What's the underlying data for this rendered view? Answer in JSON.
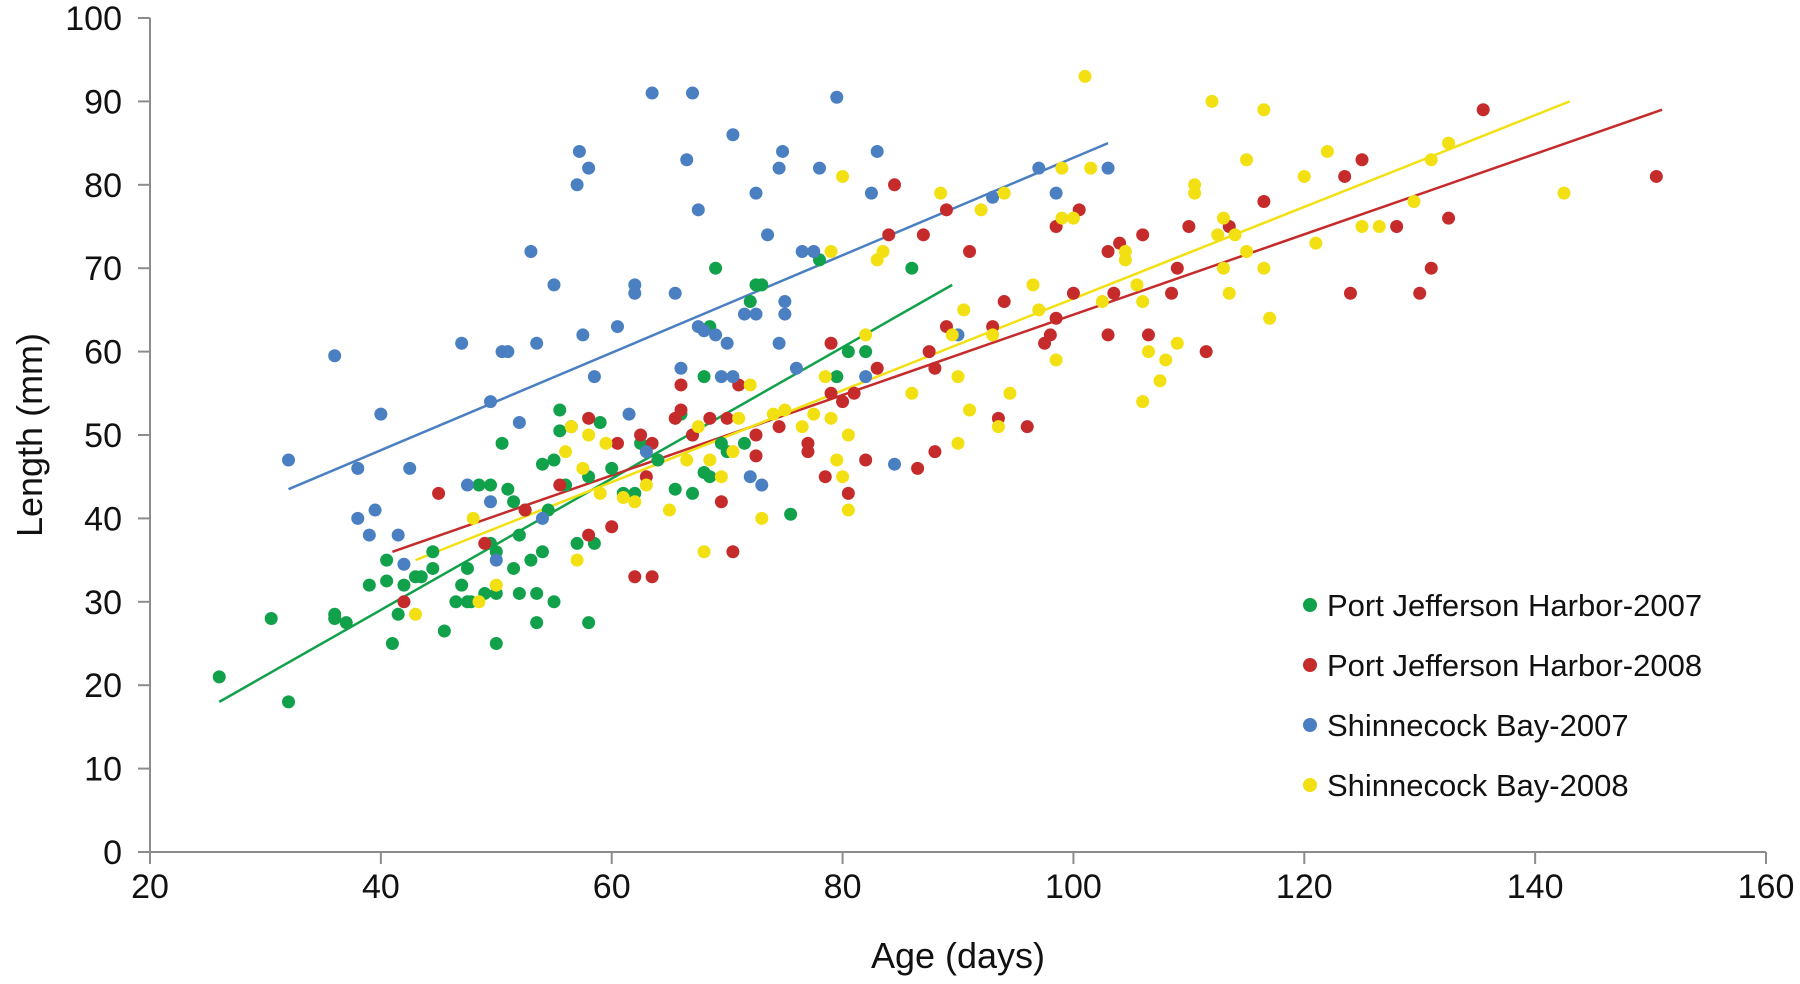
{
  "chart_data": {
    "type": "scatter",
    "title": "",
    "xlabel": "Age (days)",
    "ylabel": "Length (mm)",
    "xlim": [
      20,
      160
    ],
    "ylim": [
      0,
      100
    ],
    "xticks": [
      "20",
      "40",
      "60",
      "80",
      "100",
      "120",
      "140",
      "160"
    ],
    "yticks": [
      "0",
      "10",
      "20",
      "30",
      "40",
      "50",
      "60",
      "70",
      "80",
      "90",
      "100"
    ],
    "grid": false,
    "legend_position": "bottom-right",
    "series": [
      {
        "name": "Port Jefferson Harbor-2007",
        "color": "#12a14b",
        "trendline": [
          [
            26,
            18
          ],
          [
            89.5,
            68
          ]
        ],
        "points": [
          [
            26,
            21
          ],
          [
            30.5,
            28
          ],
          [
            32,
            18
          ],
          [
            36,
            28.5
          ],
          [
            36,
            28
          ],
          [
            37,
            27.5
          ],
          [
            39,
            32
          ],
          [
            40.5,
            35
          ],
          [
            40.5,
            32.5
          ],
          [
            41,
            25
          ],
          [
            41.5,
            28.5
          ],
          [
            42,
            32
          ],
          [
            43,
            33
          ],
          [
            43.5,
            33
          ],
          [
            44.5,
            34
          ],
          [
            44.5,
            36
          ],
          [
            45.5,
            26.5
          ],
          [
            46.5,
            30
          ],
          [
            47,
            32
          ],
          [
            47.5,
            30
          ],
          [
            47.5,
            34
          ],
          [
            47.8,
            30
          ],
          [
            48.5,
            44
          ],
          [
            49.5,
            44
          ],
          [
            49.5,
            37
          ],
          [
            49,
            31
          ],
          [
            50,
            31
          ],
          [
            50,
            25
          ],
          [
            50,
            36
          ],
          [
            50.5,
            49
          ],
          [
            51,
            43.5
          ],
          [
            51.5,
            42
          ],
          [
            51.5,
            34
          ],
          [
            52,
            31
          ],
          [
            52,
            38
          ],
          [
            52.5,
            41
          ],
          [
            53,
            35
          ],
          [
            53.5,
            31
          ],
          [
            53.5,
            27.5
          ],
          [
            54,
            36
          ],
          [
            54,
            46.5
          ],
          [
            54.5,
            41
          ],
          [
            55,
            47
          ],
          [
            55,
            30
          ],
          [
            55.5,
            50.5
          ],
          [
            55.5,
            53
          ],
          [
            56,
            44
          ],
          [
            56.5,
            51
          ],
          [
            57,
            37
          ],
          [
            58,
            45
          ],
          [
            58,
            27.5
          ],
          [
            58.5,
            37
          ],
          [
            59,
            51.5
          ],
          [
            60,
            46
          ],
          [
            61,
            43
          ],
          [
            62,
            43
          ],
          [
            62.5,
            49
          ],
          [
            64,
            47
          ],
          [
            65.5,
            43.5
          ],
          [
            66,
            52.5
          ],
          [
            67,
            50
          ],
          [
            67,
            43
          ],
          [
            68,
            57
          ],
          [
            68,
            45.5
          ],
          [
            68.5,
            45
          ],
          [
            68.5,
            63
          ],
          [
            69,
            70
          ],
          [
            69.5,
            49
          ],
          [
            70,
            48
          ],
          [
            71.5,
            49
          ],
          [
            72,
            66
          ],
          [
            72.5,
            68
          ],
          [
            73,
            68
          ],
          [
            75.5,
            40.5
          ],
          [
            78,
            71
          ],
          [
            79.5,
            57
          ],
          [
            80.5,
            60
          ],
          [
            82,
            60
          ],
          [
            86,
            70
          ]
        ]
      },
      {
        "name": "Port Jefferson Harbor-2008",
        "color": "#c62b2b",
        "trendline": [
          [
            41,
            36
          ],
          [
            151,
            89
          ]
        ],
        "points": [
          [
            42,
            30
          ],
          [
            45,
            43
          ],
          [
            49,
            37
          ],
          [
            52.5,
            41
          ],
          [
            55.5,
            44
          ],
          [
            58,
            52
          ],
          [
            58,
            38
          ],
          [
            60,
            39
          ],
          [
            60.5,
            49
          ],
          [
            62,
            33
          ],
          [
            62.5,
            50
          ],
          [
            63,
            45
          ],
          [
            63.5,
            33
          ],
          [
            63.5,
            49
          ],
          [
            65.5,
            52
          ],
          [
            66,
            56
          ],
          [
            66,
            53
          ],
          [
            67,
            50
          ],
          [
            68.5,
            52
          ],
          [
            69.5,
            42
          ],
          [
            70,
            52
          ],
          [
            70.5,
            36
          ],
          [
            71,
            56
          ],
          [
            72.5,
            47.5
          ],
          [
            72.5,
            50
          ],
          [
            74.5,
            51
          ],
          [
            77,
            48
          ],
          [
            77,
            49
          ],
          [
            78.5,
            45
          ],
          [
            79,
            61
          ],
          [
            79,
            55
          ],
          [
            80,
            54
          ],
          [
            80.5,
            43
          ],
          [
            81,
            55
          ],
          [
            82,
            47
          ],
          [
            83,
            58
          ],
          [
            84,
            74
          ],
          [
            84.5,
            80
          ],
          [
            86.5,
            46
          ],
          [
            87,
            74
          ],
          [
            87.5,
            60
          ],
          [
            88,
            58
          ],
          [
            88,
            48
          ],
          [
            89,
            77
          ],
          [
            89,
            63
          ],
          [
            91,
            72
          ],
          [
            93,
            63
          ],
          [
            93.5,
            52
          ],
          [
            94,
            66
          ],
          [
            96,
            51
          ],
          [
            97.5,
            61
          ],
          [
            98,
            62
          ],
          [
            98.5,
            75
          ],
          [
            98.5,
            64
          ],
          [
            100,
            67
          ],
          [
            100.5,
            77
          ],
          [
            103,
            62
          ],
          [
            103,
            72
          ],
          [
            103.5,
            67
          ],
          [
            104,
            73
          ],
          [
            106,
            74
          ],
          [
            106.5,
            62
          ],
          [
            108.5,
            67
          ],
          [
            109,
            70
          ],
          [
            110,
            75
          ],
          [
            111.5,
            60
          ],
          [
            113.5,
            75
          ],
          [
            116.5,
            78
          ],
          [
            123.5,
            81
          ],
          [
            124,
            67
          ],
          [
            125,
            83
          ],
          [
            128,
            75
          ],
          [
            130,
            67
          ],
          [
            131,
            70
          ],
          [
            132.5,
            76
          ],
          [
            135.5,
            89
          ],
          [
            150.5,
            81
          ]
        ]
      },
      {
        "name": "Shinnecock Bay-2007",
        "color": "#4a7fc1",
        "trendline": [
          [
            32,
            43.5
          ],
          [
            103,
            85
          ]
        ],
        "points": [
          [
            32,
            47
          ],
          [
            36,
            59.5
          ],
          [
            38,
            40
          ],
          [
            38,
            46
          ],
          [
            39,
            38
          ],
          [
            39.5,
            41
          ],
          [
            40,
            52.5
          ],
          [
            41.5,
            38
          ],
          [
            42,
            34.5
          ],
          [
            42.5,
            46
          ],
          [
            47,
            61
          ],
          [
            47.5,
            44
          ],
          [
            49.5,
            54
          ],
          [
            49.5,
            42
          ],
          [
            50,
            35
          ],
          [
            50.5,
            60
          ],
          [
            51,
            60
          ],
          [
            52,
            51.5
          ],
          [
            53,
            72
          ],
          [
            53.5,
            61
          ],
          [
            54,
            40
          ],
          [
            55,
            68
          ],
          [
            57,
            80
          ],
          [
            57.2,
            84
          ],
          [
            57.5,
            62
          ],
          [
            58,
            82
          ],
          [
            58.5,
            57
          ],
          [
            60.5,
            63
          ],
          [
            61.5,
            52.5
          ],
          [
            62,
            67
          ],
          [
            62,
            68
          ],
          [
            63,
            48
          ],
          [
            63.5,
            91
          ],
          [
            65.5,
            67
          ],
          [
            66,
            58
          ],
          [
            66.5,
            83
          ],
          [
            67,
            91
          ],
          [
            67.5,
            63
          ],
          [
            67.5,
            77
          ],
          [
            68,
            62.5
          ],
          [
            69,
            62
          ],
          [
            69.5,
            57
          ],
          [
            70,
            61
          ],
          [
            70.5,
            57
          ],
          [
            70.5,
            86
          ],
          [
            71.5,
            64.5
          ],
          [
            72,
            45
          ],
          [
            72.5,
            79
          ],
          [
            72.5,
            64.5
          ],
          [
            73,
            44
          ],
          [
            73.5,
            74
          ],
          [
            74.5,
            82
          ],
          [
            74.5,
            61
          ],
          [
            74.8,
            84
          ],
          [
            75,
            66
          ],
          [
            75,
            64.5
          ],
          [
            76,
            58
          ],
          [
            76.5,
            72
          ],
          [
            77.5,
            72
          ],
          [
            78,
            82
          ],
          [
            79.5,
            90.5
          ],
          [
            82,
            57
          ],
          [
            82.5,
            79
          ],
          [
            83,
            84
          ],
          [
            84.5,
            46.5
          ],
          [
            90,
            62
          ],
          [
            93,
            78.5
          ],
          [
            97,
            82
          ],
          [
            98.5,
            79
          ],
          [
            103,
            82
          ]
        ]
      },
      {
        "name": "Shinnecock Bay-2008",
        "color": "#f2e012",
        "trendline": [
          [
            43,
            35
          ],
          [
            143,
            90
          ]
        ],
        "points": [
          [
            43,
            28.5
          ],
          [
            48,
            40
          ],
          [
            48.5,
            30
          ],
          [
            50,
            32
          ],
          [
            56,
            48
          ],
          [
            56.5,
            51
          ],
          [
            57,
            35
          ],
          [
            57.5,
            46
          ],
          [
            58,
            50
          ],
          [
            59,
            43
          ],
          [
            59.5,
            49
          ],
          [
            61,
            42.5
          ],
          [
            62,
            42
          ],
          [
            63,
            44
          ],
          [
            65,
            41
          ],
          [
            66.5,
            47
          ],
          [
            67.5,
            51
          ],
          [
            68,
            36
          ],
          [
            68.5,
            47
          ],
          [
            69.5,
            45
          ],
          [
            70.5,
            48
          ],
          [
            71,
            52
          ],
          [
            72,
            56
          ],
          [
            73,
            40
          ],
          [
            74,
            52.5
          ],
          [
            75,
            53
          ],
          [
            76.5,
            51
          ],
          [
            77.5,
            52.5
          ],
          [
            78.5,
            57
          ],
          [
            79,
            72
          ],
          [
            79,
            52
          ],
          [
            79.5,
            47
          ],
          [
            80,
            45
          ],
          [
            80,
            81
          ],
          [
            80.5,
            50
          ],
          [
            80.5,
            41
          ],
          [
            82,
            62
          ],
          [
            83,
            71
          ],
          [
            83.5,
            72
          ],
          [
            86,
            55
          ],
          [
            88.5,
            79
          ],
          [
            89.5,
            62
          ],
          [
            90,
            57
          ],
          [
            90,
            49
          ],
          [
            90.5,
            65
          ],
          [
            91,
            53
          ],
          [
            92,
            77
          ],
          [
            93,
            62
          ],
          [
            93.5,
            51
          ],
          [
            94,
            79
          ],
          [
            94.5,
            55
          ],
          [
            96.5,
            68
          ],
          [
            97,
            65
          ],
          [
            98.5,
            59
          ],
          [
            99,
            76
          ],
          [
            99,
            82
          ],
          [
            100,
            76
          ],
          [
            101,
            93
          ],
          [
            101.5,
            82
          ],
          [
            102.5,
            66
          ],
          [
            104.5,
            72
          ],
          [
            104.5,
            71
          ],
          [
            105.5,
            68
          ],
          [
            106,
            54
          ],
          [
            106,
            66
          ],
          [
            106.5,
            60
          ],
          [
            107.5,
            56.5
          ],
          [
            108,
            59
          ],
          [
            109,
            61
          ],
          [
            110.5,
            79
          ],
          [
            110.5,
            80
          ],
          [
            112,
            90
          ],
          [
            112.5,
            74
          ],
          [
            113,
            76
          ],
          [
            113,
            70
          ],
          [
            113.5,
            67
          ],
          [
            114,
            74
          ],
          [
            115,
            83
          ],
          [
            115,
            72
          ],
          [
            116.5,
            89
          ],
          [
            116.5,
            70
          ],
          [
            117,
            64
          ],
          [
            120,
            81
          ],
          [
            121,
            73
          ],
          [
            122,
            84
          ],
          [
            125,
            75
          ],
          [
            126.5,
            75
          ],
          [
            129.5,
            78
          ],
          [
            131,
            83
          ],
          [
            132.5,
            85
          ],
          [
            142.5,
            79
          ]
        ]
      }
    ]
  }
}
